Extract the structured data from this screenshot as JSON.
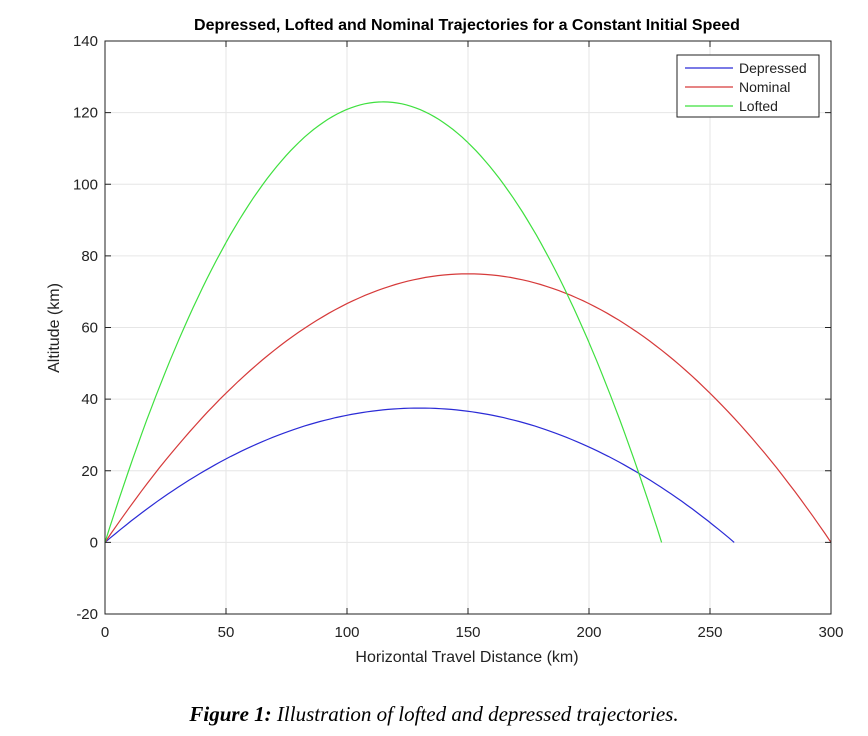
{
  "chart_data": {
    "type": "line",
    "title": "Depressed, Lofted and Nominal Trajectories for a Constant Initial Speed",
    "xlabel": "Horizontal Travel Distance (km)",
    "ylabel": "Altitude (km)",
    "xlim": [
      0,
      300
    ],
    "ylim": [
      -20,
      140
    ],
    "xticks": [
      0,
      50,
      100,
      150,
      200,
      250,
      300
    ],
    "yticks": [
      -20,
      0,
      20,
      40,
      60,
      80,
      100,
      120,
      140
    ],
    "grid": true,
    "legend_position": "top-right",
    "series": [
      {
        "name": "Depressed",
        "color": "#2b2bd6",
        "range_km": 260,
        "apex_x_km": 130,
        "apex_y_km": 37.5
      },
      {
        "name": "Nominal",
        "color": "#d63a3a",
        "range_km": 300,
        "apex_x_km": 150,
        "apex_y_km": 75
      },
      {
        "name": "Lofted",
        "color": "#3fe03f",
        "range_km": 230,
        "apex_x_km": 115,
        "apex_y_km": 123
      }
    ]
  },
  "caption": {
    "label": "Figure 1:",
    "text": " Illustration of lofted and depressed trajectories."
  }
}
